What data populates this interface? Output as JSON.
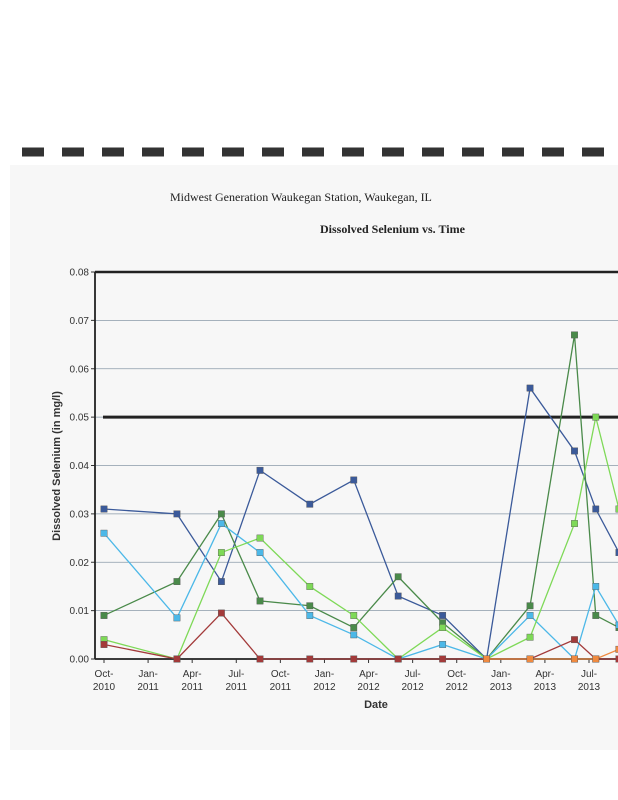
{
  "chart_data": {
    "type": "line",
    "title": "Midwest Generation Waukegan Station, Waukegan, IL",
    "subtitle": "Dissolved Selenium vs. Time",
    "xlabel": "Date",
    "ylabel": "Dissolved Selenium (in mg/l)",
    "ylim": [
      0,
      0.08
    ],
    "y_ticks": [
      "0.00",
      "0.01",
      "0.02",
      "0.03",
      "0.04",
      "0.05",
      "0.06",
      "0.07",
      "0.08"
    ],
    "x_ticks": [
      {
        "month": "Oct-",
        "year": "2010"
      },
      {
        "month": "Jan-",
        "year": "2011"
      },
      {
        "month": "Apr-",
        "year": "2011"
      },
      {
        "month": "Jul-",
        "year": "2011"
      },
      {
        "month": "Oct-",
        "year": "2011"
      },
      {
        "month": "Jan-",
        "year": "2012"
      },
      {
        "month": "Apr-",
        "year": "2012"
      },
      {
        "month": "Jul-",
        "year": "2012"
      },
      {
        "month": "Oct-",
        "year": "2012"
      },
      {
        "month": "Jan-",
        "year": "2013"
      },
      {
        "month": "Apr-",
        "year": "2013"
      },
      {
        "month": "Jul-",
        "year": "2013"
      }
    ],
    "grid": true,
    "reference_line": {
      "y": 0.05
    },
    "series": [
      {
        "color": "#3b5a9a",
        "points": [
          [
            "2010-10-01",
            0.031
          ],
          [
            "2011-03-01",
            0.03
          ],
          [
            "2011-06-01",
            0.016
          ],
          [
            "2011-08-20",
            0.039
          ],
          [
            "2011-12-01",
            0.032
          ],
          [
            "2012-03-01",
            0.037
          ],
          [
            "2012-06-01",
            0.013
          ],
          [
            "2012-09-01",
            0.009
          ],
          [
            "2012-12-01",
            0.0
          ],
          [
            "2013-03-01",
            0.056
          ],
          [
            "2013-06-01",
            0.043
          ],
          [
            "2013-07-15",
            0.031
          ],
          [
            "2013-09-01",
            0.022
          ]
        ]
      },
      {
        "color": "#4a8a4a",
        "points": [
          [
            "2010-10-01",
            0.009
          ],
          [
            "2011-03-01",
            0.016
          ],
          [
            "2011-06-01",
            0.03
          ],
          [
            "2011-08-20",
            0.012
          ],
          [
            "2011-12-01",
            0.011
          ],
          [
            "2012-03-01",
            0.0065
          ],
          [
            "2012-06-01",
            0.017
          ],
          [
            "2012-09-01",
            0.0075
          ],
          [
            "2012-12-01",
            0.0
          ],
          [
            "2013-03-01",
            0.011
          ],
          [
            "2013-06-01",
            0.067
          ],
          [
            "2013-07-15",
            0.009
          ],
          [
            "2013-09-01",
            0.0065
          ]
        ]
      },
      {
        "color": "#4cb8e8",
        "points": [
          [
            "2010-10-01",
            0.026
          ],
          [
            "2011-03-01",
            0.0085
          ],
          [
            "2011-06-01",
            0.028
          ],
          [
            "2011-08-20",
            0.022
          ],
          [
            "2011-12-01",
            0.009
          ],
          [
            "2012-03-01",
            0.005
          ],
          [
            "2012-06-01",
            0.0
          ],
          [
            "2012-09-01",
            0.003
          ],
          [
            "2012-12-01",
            0.0
          ],
          [
            "2013-03-01",
            0.009
          ],
          [
            "2013-06-01",
            0.0
          ],
          [
            "2013-07-15",
            0.015
          ],
          [
            "2013-09-01",
            0.007
          ]
        ]
      },
      {
        "color": "#7ed957",
        "points": [
          [
            "2010-10-01",
            0.004
          ],
          [
            "2011-03-01",
            0.0
          ],
          [
            "2011-06-01",
            0.022
          ],
          [
            "2011-08-20",
            0.025
          ],
          [
            "2011-12-01",
            0.015
          ],
          [
            "2012-03-01",
            0.009
          ],
          [
            "2012-06-01",
            0.0
          ],
          [
            "2012-09-01",
            0.0065
          ],
          [
            "2012-12-01",
            0.0
          ],
          [
            "2013-03-01",
            0.0045
          ],
          [
            "2013-06-01",
            0.028
          ],
          [
            "2013-07-15",
            0.05
          ],
          [
            "2013-09-01",
            0.031
          ]
        ]
      },
      {
        "color": "#a33a3a",
        "points": [
          [
            "2010-10-01",
            0.003
          ],
          [
            "2011-03-01",
            0.0
          ],
          [
            "2011-06-01",
            0.0095
          ],
          [
            "2011-08-20",
            0.0
          ],
          [
            "2011-12-01",
            0.0
          ],
          [
            "2012-03-01",
            0.0
          ],
          [
            "2012-06-01",
            0.0
          ],
          [
            "2012-09-01",
            0.0
          ],
          [
            "2012-12-01",
            0.0
          ],
          [
            "2013-03-01",
            0.0
          ],
          [
            "2013-06-01",
            0.004
          ],
          [
            "2013-07-15",
            0.0
          ],
          [
            "2013-09-01",
            0.0
          ]
        ]
      },
      {
        "color": "#f08a40",
        "points": [
          [
            "2012-12-01",
            0.0
          ],
          [
            "2013-03-01",
            0.0
          ],
          [
            "2013-06-01",
            0.0
          ],
          [
            "2013-07-15",
            0.0
          ],
          [
            "2013-09-01",
            0.002
          ]
        ]
      }
    ]
  }
}
